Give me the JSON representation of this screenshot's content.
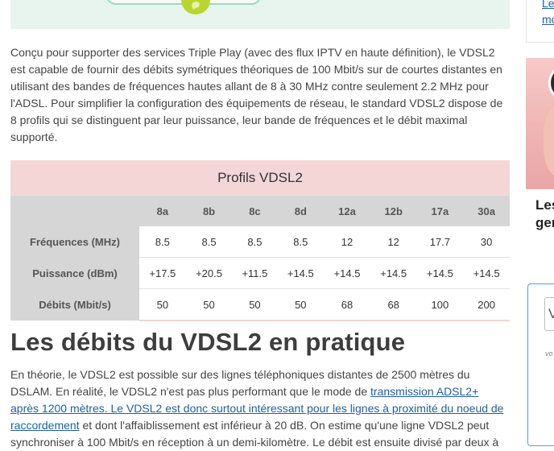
{
  "intro_paragraph": "Conçu pour supporter des services Triple Play (avec des flux IPTV en haute définition), le VDSL2 est capable de fournir des débits symétriques théoriques de 100 Mbit/s sur de courtes distantes en utilisant des bandes de fréquences hautes allant de 8 à 30 MHz contre seulement 2.2 MHz pour l'ADSL. Pour simplifier la configuration des équipements de réseau, le standard VDSL2 dispose de 8 profils qui se distinguent par leur puissance, leur bande de fréquences et le débit maximal supporté.",
  "table": {
    "caption": "Profils VDSL2",
    "columns": [
      "8a",
      "8b",
      "8c",
      "8d",
      "12a",
      "12b",
      "17a",
      "30a"
    ],
    "rows": [
      {
        "label": "Fréquences (MHz)",
        "values": [
          "8.5",
          "8.5",
          "8.5",
          "8.5",
          "12",
          "12",
          "17.7",
          "30"
        ]
      },
      {
        "label": "Puissance (dBm)",
        "values": [
          "+17.5",
          "+20.5",
          "+11.5",
          "+14.5",
          "+14.5",
          "+14.5",
          "+14.5",
          "+14.5"
        ]
      },
      {
        "label": "Débits (Mbit/s)",
        "values": [
          "50",
          "50",
          "50",
          "50",
          "68",
          "68",
          "100",
          "200"
        ]
      }
    ]
  },
  "section_title": "Les débits du VDSL2 en pratique",
  "body": {
    "text_1": "En théorie, le VDSL2 est possible sur des lignes téléphoniques distantes de 2500 mètres du DSLAM. En réalité, le VDSL2 n'est pas plus performant que le mode de ",
    "link_1": "transmission ADSL2+ après 1200 mètres. Le VDSL2 est donc surtout intéressant pour les lignes à proximité du noeud de raccordement",
    "text_2": " et dont l'affaiblissement est inférieur à 20 dB. On estime qu'une ligne VDSL2 peut synchroniser à 100 Mbit/s en réception à un demi-kilomètre. Le débit est ensuite divisé par deux à"
  },
  "sidebar": {
    "link_lines": [
      "Le",
      "mo"
    ],
    "caption_lines": [
      "Les",
      "ger"
    ],
    "input_value": "V",
    "small_text": "vo"
  },
  "colors": {
    "caption_bg": "#f4d6d6",
    "header_bg": "#d6d6d6",
    "link": "#1f5fa8",
    "illustration_bg": "#e8f4ee"
  }
}
